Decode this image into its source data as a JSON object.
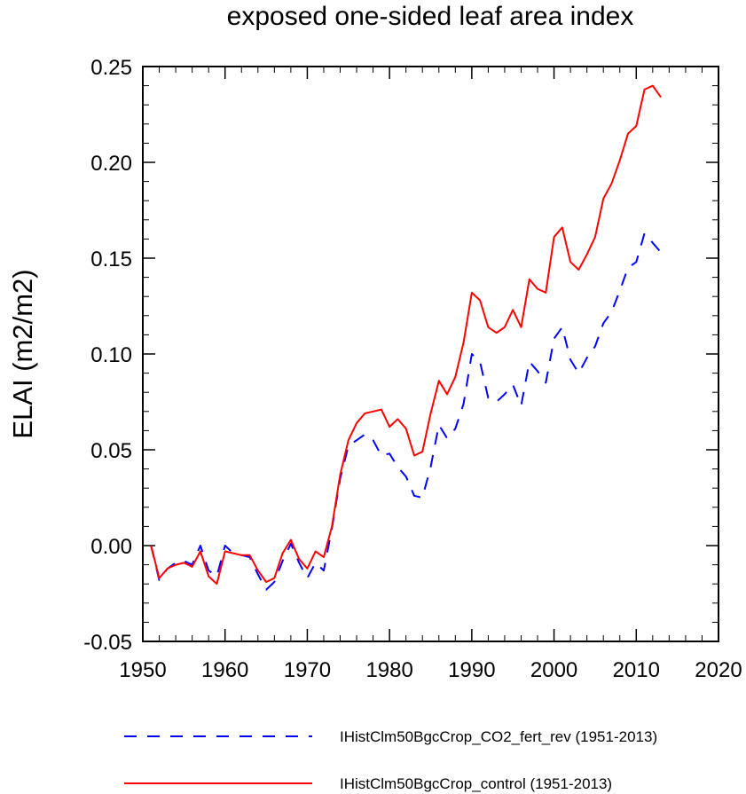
{
  "chart_data": {
    "type": "line",
    "title": "exposed one-sided leaf area index",
    "xlabel": "",
    "ylabel": "ELAI  (m2/m2)",
    "xlim": [
      1950,
      2020
    ],
    "ylim": [
      -0.05,
      0.25
    ],
    "xticks": [
      1950,
      1960,
      1970,
      1980,
      1990,
      2000,
      2010,
      2020
    ],
    "xtick_labels": [
      "1950",
      "1960",
      "1970",
      "1980",
      "1990",
      "2000",
      "2010",
      "2020"
    ],
    "yticks": [
      -0.05,
      0.0,
      0.05,
      0.1,
      0.15,
      0.2,
      0.25
    ],
    "ytick_labels": [
      "-0.05",
      "0.00",
      "0.05",
      "0.10",
      "0.15",
      "0.20",
      "0.25"
    ],
    "legend_position": "bottom",
    "x": [
      1951,
      1952,
      1953,
      1954,
      1955,
      1956,
      1957,
      1958,
      1959,
      1960,
      1961,
      1962,
      1963,
      1964,
      1965,
      1966,
      1967,
      1968,
      1969,
      1970,
      1971,
      1972,
      1973,
      1974,
      1975,
      1976,
      1977,
      1978,
      1979,
      1980,
      1981,
      1982,
      1983,
      1984,
      1985,
      1986,
      1987,
      1988,
      1989,
      1990,
      1991,
      1992,
      1993,
      1994,
      1995,
      1996,
      1997,
      1998,
      1999,
      2000,
      2001,
      2002,
      2003,
      2004,
      2005,
      2006,
      2007,
      2008,
      2009,
      2010,
      2011,
      2012,
      2013
    ],
    "series": [
      {
        "name": "IHistClm50BgcCrop_CO2_fert_rev (1951-2013)",
        "color": "#0000ff",
        "dash": "dashed",
        "values": [
          0.0,
          -0.018,
          -0.012,
          -0.009,
          -0.008,
          -0.01,
          0.0,
          -0.013,
          -0.016,
          0.0,
          -0.004,
          -0.005,
          -0.006,
          -0.015,
          -0.023,
          -0.019,
          -0.008,
          0.001,
          -0.009,
          -0.017,
          -0.009,
          -0.013,
          0.009,
          0.035,
          0.052,
          0.055,
          0.058,
          0.055,
          0.047,
          0.048,
          0.041,
          0.036,
          0.026,
          0.025,
          0.041,
          0.063,
          0.056,
          0.061,
          0.074,
          0.1,
          0.096,
          0.077,
          0.075,
          0.079,
          0.084,
          0.073,
          0.096,
          0.091,
          0.085,
          0.108,
          0.114,
          0.097,
          0.09,
          0.098,
          0.104,
          0.116,
          0.122,
          0.133,
          0.145,
          0.148,
          0.163,
          0.158,
          0.153
        ]
      },
      {
        "name": "IHistClm50BgcCrop_control (1951-2013)",
        "color": "#ff0000",
        "dash": "solid",
        "values": [
          0.0,
          -0.017,
          -0.012,
          -0.01,
          -0.009,
          -0.011,
          -0.003,
          -0.016,
          -0.02,
          -0.003,
          -0.004,
          -0.005,
          -0.005,
          -0.013,
          -0.019,
          -0.017,
          -0.004,
          0.003,
          -0.007,
          -0.012,
          -0.003,
          -0.006,
          0.01,
          0.037,
          0.055,
          0.064,
          0.069,
          0.07,
          0.071,
          0.062,
          0.066,
          0.061,
          0.047,
          0.049,
          0.069,
          0.086,
          0.079,
          0.088,
          0.106,
          0.132,
          0.128,
          0.114,
          0.111,
          0.114,
          0.123,
          0.114,
          0.139,
          0.134,
          0.132,
          0.161,
          0.166,
          0.148,
          0.144,
          0.152,
          0.161,
          0.181,
          0.189,
          0.201,
          0.215,
          0.219,
          0.238,
          0.24,
          0.234
        ]
      }
    ]
  }
}
